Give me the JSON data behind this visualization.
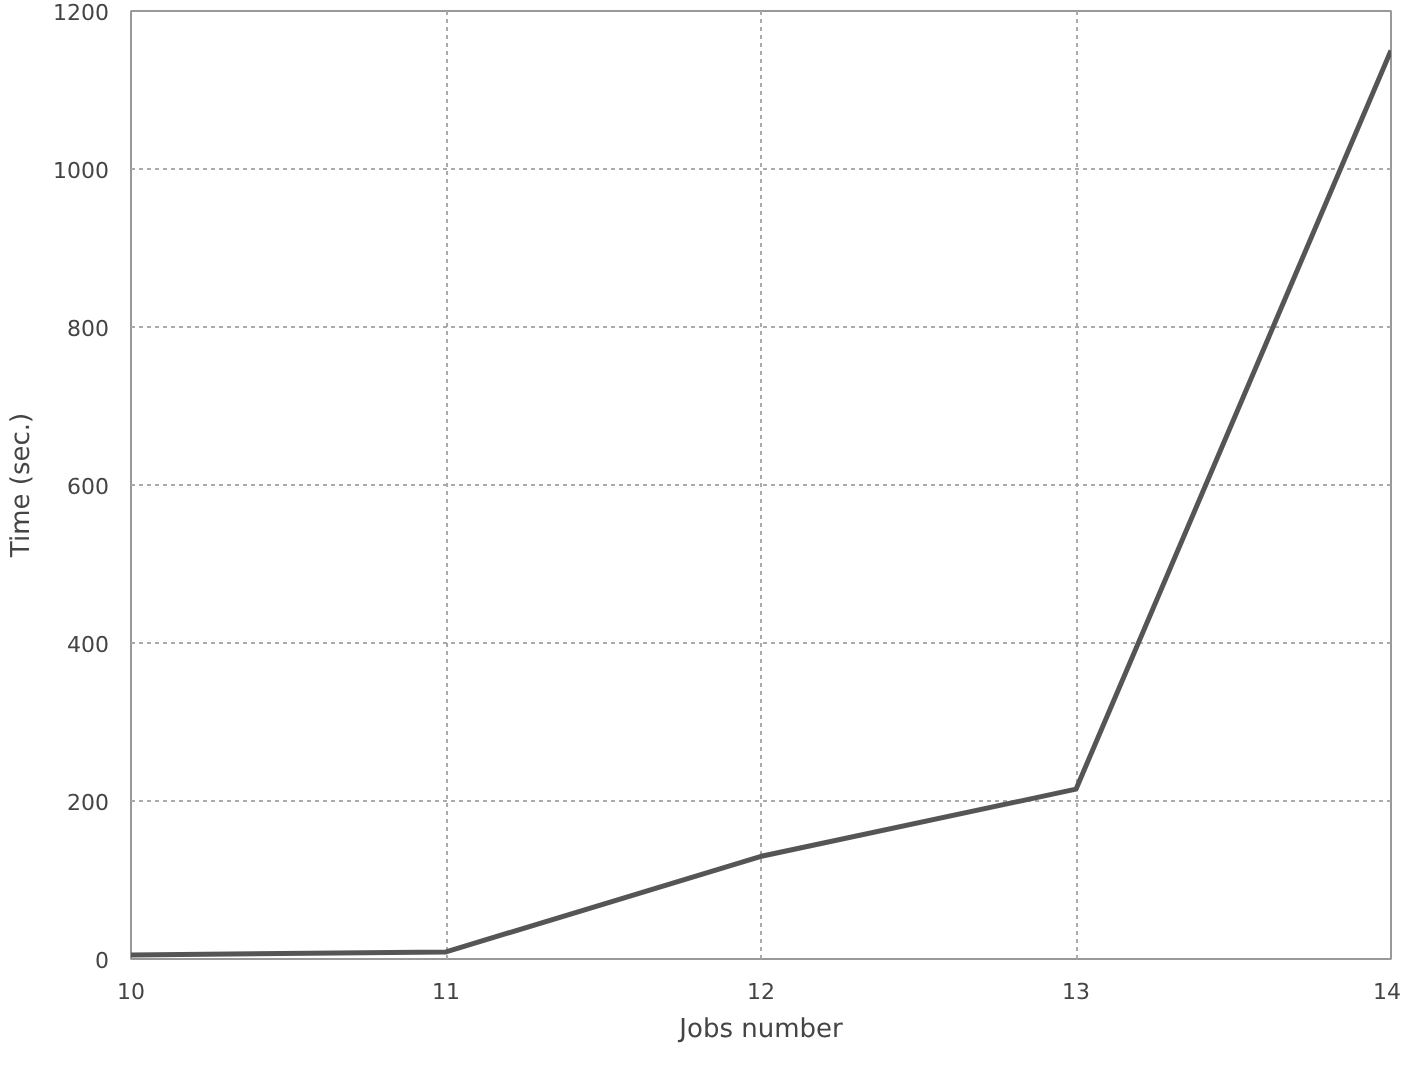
{
  "chart_data": {
    "type": "line",
    "xlabel": "Jobs number",
    "ylabel": "Time (sec.)",
    "x": [
      10,
      11,
      12,
      13,
      14
    ],
    "series": [
      {
        "color": "#555555",
        "values": [
          5,
          9,
          130,
          215,
          1150
        ]
      }
    ],
    "xlim": [
      10,
      14
    ],
    "xticks": [
      10,
      11,
      12,
      13,
      14
    ],
    "ylim": [
      0,
      1200
    ],
    "yticks": [
      0,
      200,
      400,
      600,
      800,
      1000,
      1200
    ],
    "grid": true,
    "marker": "none",
    "line_style": "solid"
  }
}
